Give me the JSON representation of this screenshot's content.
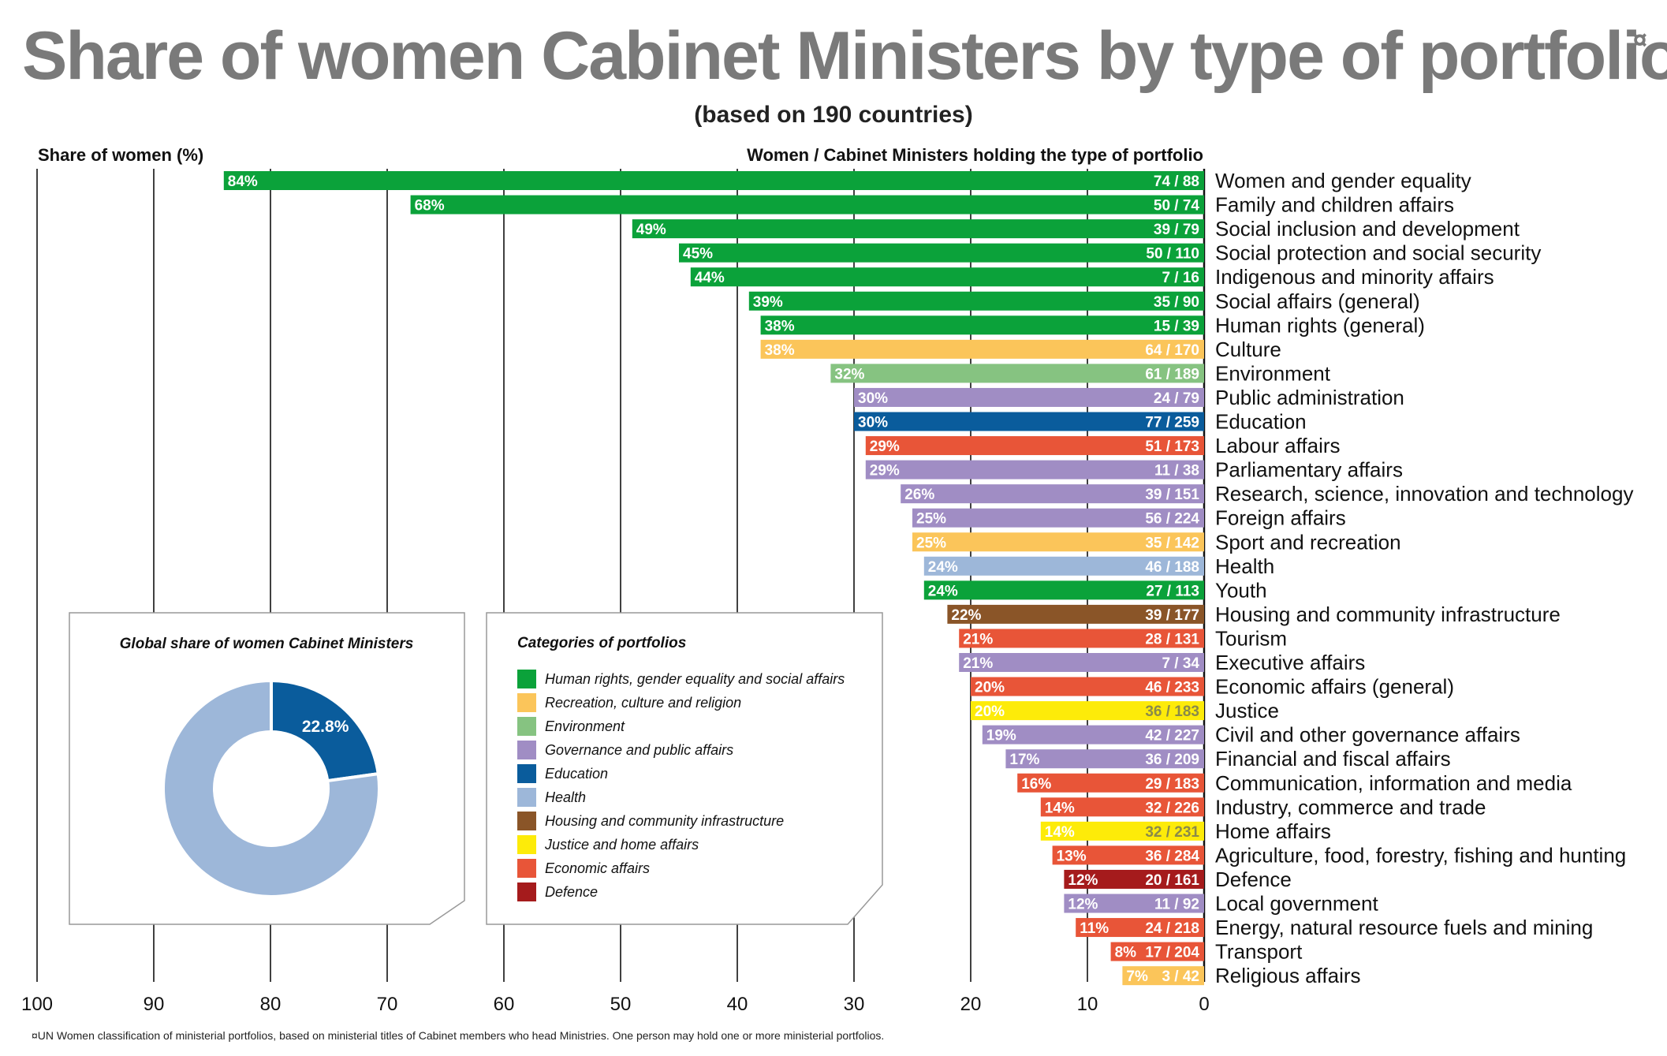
{
  "title": "Share of women Cabinet Ministers by type of portfolio",
  "title_mark": "¤",
  "subtitle": "(based on 190 countries)",
  "left_axis_title": "Share of women (%)",
  "right_axis_title": "Women / Cabinet Ministers holding the type of portfolio",
  "footnote": "¤UN Women classification of ministerial portfolios, based on ministerial titles of Cabinet members who head Ministries. One person may hold one or more ministerial portfolios.",
  "colors": {
    "human_rights": "#0ba23a",
    "recreation": "#fbc55a",
    "environment": "#86c381",
    "governance": "#a08dc4",
    "education": "#0a5c9c",
    "health": "#9db7d9",
    "housing": "#8a5528",
    "justice": "#fdeb09",
    "economic": "#e85538",
    "defence": "#a51b1c"
  },
  "chart_data": [
    {
      "type": "bar",
      "orientation": "horizontal",
      "xlim": [
        100,
        0
      ],
      "xticks": [
        100,
        90,
        80,
        70,
        60,
        50,
        40,
        30,
        20,
        10,
        0
      ],
      "grid": "vertical",
      "categories": [
        "Women and gender equality",
        "Family and children affairs",
        "Social inclusion and development",
        "Social protection and social security",
        "Indigenous and minority affairs",
        "Social affairs (general)",
        "Human rights (general)",
        "Culture",
        "Environment",
        "Public administration",
        "Education",
        "Labour affairs",
        "Parliamentary affairs",
        "Research, science, innovation and technology",
        "Foreign affairs",
        "Sport and recreation",
        "Health",
        "Youth",
        "Housing and community infrastructure",
        "Tourism",
        "Executive affairs",
        "Economic affairs (general)",
        "Justice",
        "Civil and other governance affairs",
        "Financial and fiscal affairs",
        "Communication, information and media",
        "Industry, commerce and trade",
        "Home affairs",
        "Agriculture, food, forestry, fishing and hunting",
        "Defence",
        "Local government",
        "Energy, natural resource fuels and mining",
        "Transport",
        "Religious affairs"
      ],
      "values": [
        84,
        68,
        49,
        45,
        44,
        39,
        38,
        38,
        32,
        30,
        30,
        29,
        29,
        26,
        25,
        25,
        24,
        24,
        22,
        21,
        21,
        20,
        20,
        19,
        17,
        16,
        14,
        14,
        13,
        12,
        12,
        11,
        8,
        7
      ],
      "value_labels": [
        "84%",
        "68%",
        "49%",
        "45%",
        "44%",
        "39%",
        "38%",
        "38%",
        "32%",
        "30%",
        "30%",
        "29%",
        "29%",
        "26%",
        "25%",
        "25%",
        "24%",
        "24%",
        "22%",
        "21%",
        "21%",
        "20%",
        "20%",
        "19%",
        "17%",
        "16%",
        "14%",
        "14%",
        "13%",
        "12%",
        "12%",
        "11%",
        "8%",
        "7%"
      ],
      "counts": [
        "74 / 88",
        "50 / 74",
        "39 / 79",
        "50 / 110",
        "7 / 16",
        "35 / 90",
        "15 / 39",
        "64 / 170",
        "61 / 189",
        "24 / 79",
        "77 / 259",
        "51 / 173",
        "11 / 38",
        "39 / 151",
        "56 / 224",
        "35 / 142",
        "46 / 188",
        "27 / 113",
        "39 / 177",
        "28 / 131",
        "7 / 34",
        "46 / 233",
        "36 / 183",
        "42 / 227",
        "36 / 209",
        "29 / 183",
        "32 / 226",
        "32 / 231",
        "36 / 284",
        "20 / 161",
        "11 / 92",
        "24 / 218",
        "17 / 204",
        "3 / 42"
      ],
      "bar_categories": [
        "human_rights",
        "human_rights",
        "human_rights",
        "human_rights",
        "human_rights",
        "human_rights",
        "human_rights",
        "recreation",
        "environment",
        "governance",
        "education",
        "economic",
        "governance",
        "governance",
        "governance",
        "recreation",
        "health",
        "human_rights",
        "housing",
        "economic",
        "governance",
        "economic",
        "justice",
        "governance",
        "governance",
        "economic",
        "economic",
        "justice",
        "economic",
        "defence",
        "governance",
        "economic",
        "economic",
        "recreation"
      ]
    },
    {
      "type": "pie",
      "style": "donut",
      "title": "Global share of women Cabinet Ministers",
      "slices": [
        {
          "value": 22.8,
          "label": "22.8%",
          "color_key": "education"
        },
        {
          "value": 77.2,
          "label": "",
          "color_key": "health"
        }
      ]
    }
  ],
  "legend": {
    "title": "Categories of portfolios",
    "items": [
      {
        "key": "human_rights",
        "label": "Human rights, gender equality and social affairs"
      },
      {
        "key": "recreation",
        "label": "Recreation, culture and religion"
      },
      {
        "key": "environment",
        "label": "Environment"
      },
      {
        "key": "governance",
        "label": "Governance and public affairs"
      },
      {
        "key": "education",
        "label": "Education"
      },
      {
        "key": "health",
        "label": "Health"
      },
      {
        "key": "housing",
        "label": "Housing and community infrastructure"
      },
      {
        "key": "justice",
        "label": "Justice and home affairs"
      },
      {
        "key": "economic",
        "label": "Economic affairs"
      },
      {
        "key": "defence",
        "label": "Defence"
      }
    ]
  }
}
